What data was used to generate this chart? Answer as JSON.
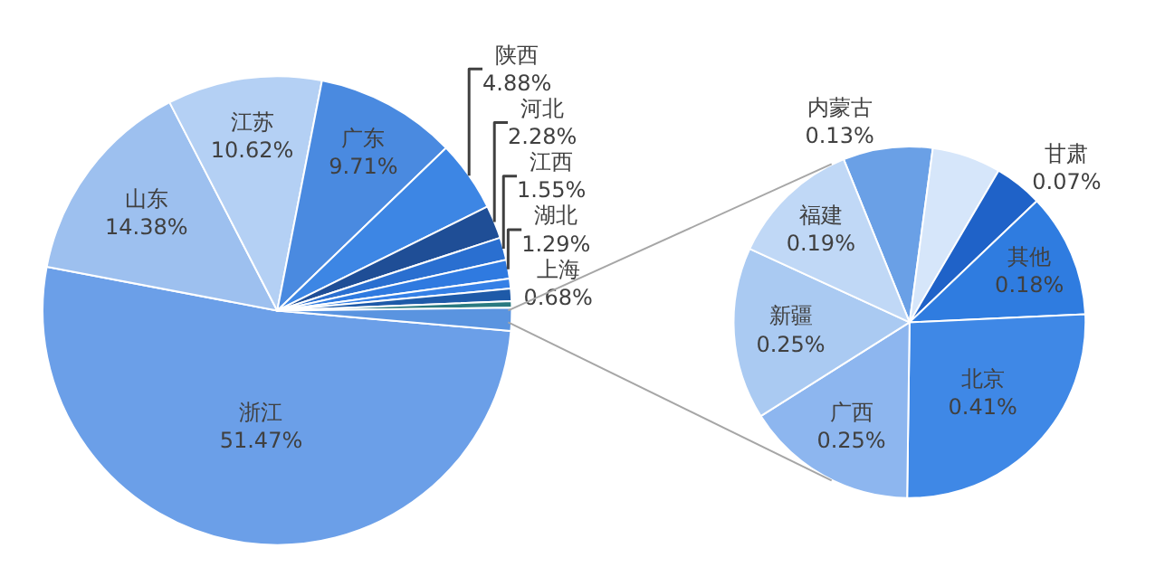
{
  "chart_data": [
    {
      "type": "pie",
      "categories": [
        "浙江",
        "山东",
        "江苏",
        "广东",
        "陕西",
        "河北",
        "江西",
        "湖北",
        "上海",
        null,
        null,
        null
      ],
      "values": [
        51.47,
        14.38,
        10.62,
        9.71,
        4.88,
        2.28,
        1.55,
        1.29,
        0.68,
        0.85,
        0.45,
        1.58
      ],
      "colors": [
        "#6b9fe8",
        "#9dc0ef",
        "#b4d0f4",
        "#4a8ae0",
        "#3d86e4",
        "#1f4e96",
        "#2a6fd0",
        "#2f7ae0",
        "#3580e6",
        "#1e5aa8",
        "#2a7a80",
        "#5a94e0"
      ],
      "value_labels": [
        "51.47%",
        "14.38%",
        "10.62%",
        "9.71%",
        "4.88%",
        "2.28%",
        "1.55%",
        "1.29%",
        "0.68%",
        null,
        null,
        null
      ]
    },
    {
      "type": "pie",
      "categories": [
        "内蒙古",
        null,
        "甘肃",
        "其他",
        "北京",
        "广西",
        "新疆",
        "福建"
      ],
      "values": [
        0.13,
        0.1,
        0.07,
        0.18,
        0.41,
        0.25,
        0.25,
        0.19
      ],
      "colors": [
        "#6aa0e6",
        "#d6e6fa",
        "#1f62c8",
        "#2f7ce0",
        "#3f88e6",
        "#8db6ef",
        "#aacaf2",
        "#c0d8f6"
      ],
      "value_labels": [
        "0.13%",
        null,
        "0.07%",
        "0.18%",
        "0.41%",
        "0.25%",
        "0.25%",
        "0.19%"
      ]
    }
  ]
}
